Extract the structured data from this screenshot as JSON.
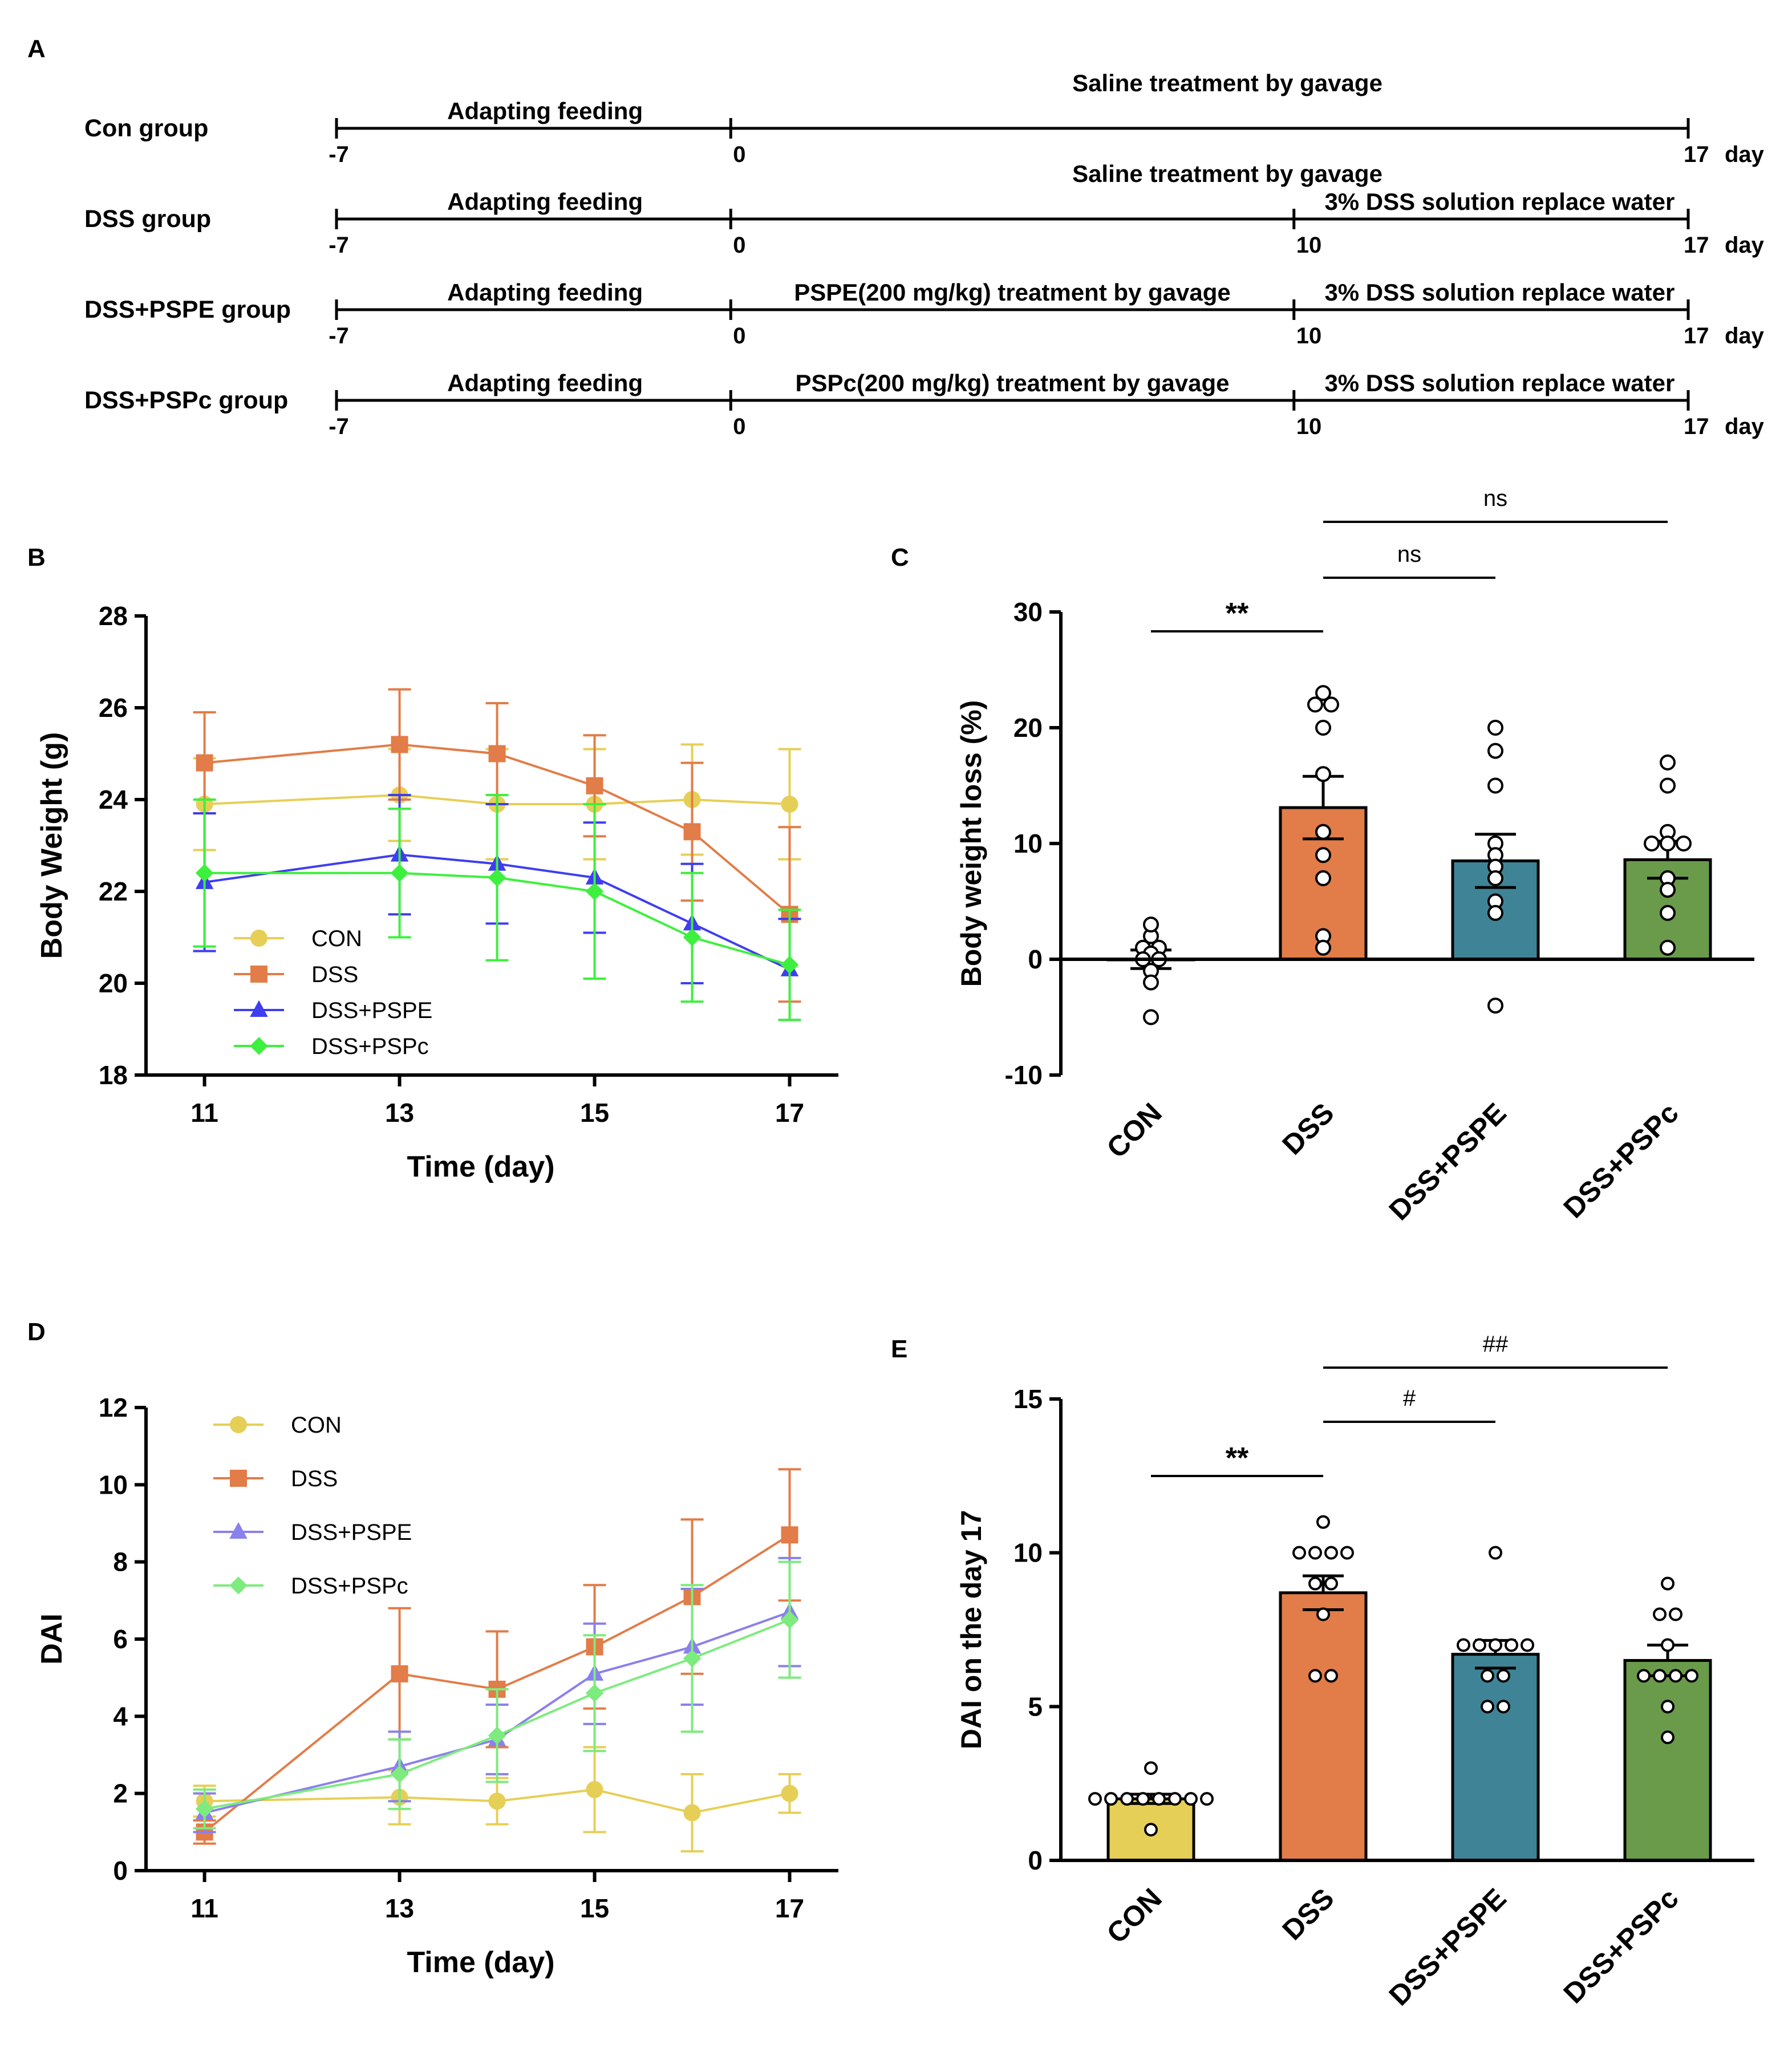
{
  "panels": {
    "A": {
      "letter": "A",
      "day_unit": "day",
      "rows": [
        {
          "group": "Con group",
          "ticks": [
            "-7",
            "0",
            "17"
          ],
          "segments": [
            "Adapting feeding",
            "Saline treatment by gavage"
          ]
        },
        {
          "group": "DSS group",
          "ticks": [
            "-7",
            "0",
            "10",
            "17"
          ],
          "segments": [
            "Adapting feeding",
            "Saline treatment by gavage",
            "3% DSS solution replace water"
          ]
        },
        {
          "group": "DSS+PSPE group",
          "ticks": [
            "-7",
            "0",
            "10",
            "17"
          ],
          "segments": [
            "Adapting feeding",
            "PSPE(200 mg/kg) treatment by gavage",
            "3% DSS solution replace water"
          ]
        },
        {
          "group": "DSS+PSPc group",
          "ticks": [
            "-7",
            "0",
            "10",
            "17"
          ],
          "segments": [
            "Adapting feeding",
            "PSPc(200 mg/kg) treatment by gavage",
            "3% DSS solution replace water"
          ]
        }
      ]
    },
    "B": {
      "letter": "B"
    },
    "C": {
      "letter": "C"
    },
    "D": {
      "letter": "D"
    },
    "E": {
      "letter": "E"
    }
  },
  "colors": {
    "CON": "#E6CF57",
    "DSS": "#E27C48",
    "DSS+PSPE": "#3E3EF0",
    "DSS+PSPc": "#3DF03D",
    "DSS+PSPE_D": "#8A80EE",
    "DSS+PSPc_D": "#7DEB7D",
    "bar_CON": "#E6CF57",
    "bar_DSS": "#E27C48",
    "bar_DSS+PSPE": "#3F8496",
    "bar_DSS+PSPc": "#6A9B4A"
  },
  "chart_data": [
    {
      "id": "B",
      "type": "line",
      "title": "",
      "xlabel": "Time (day)",
      "ylabel": "Body Weight (g)",
      "x": [
        11,
        13,
        14,
        15,
        16,
        17
      ],
      "xticks": [
        "11",
        "13",
        "15",
        "17"
      ],
      "xlim": [
        10.4,
        17.5
      ],
      "ylim": [
        18,
        28
      ],
      "yticks": [
        "18",
        "20",
        "22",
        "24",
        "26",
        "28"
      ],
      "legend_position": "bottom-left",
      "series": [
        {
          "name": "CON",
          "marker": "circle",
          "values": [
            23.9,
            24.1,
            23.9,
            23.9,
            24.0,
            23.9
          ],
          "error": [
            1.0,
            1.0,
            1.2,
            1.2,
            1.2,
            1.2
          ]
        },
        {
          "name": "DSS",
          "marker": "square",
          "values": [
            24.8,
            25.2,
            25.0,
            24.3,
            23.3,
            21.5
          ],
          "error": [
            1.1,
            1.2,
            1.1,
            1.1,
            1.5,
            1.9
          ]
        },
        {
          "name": "DSS+PSPE",
          "marker": "triangle",
          "values": [
            22.2,
            22.8,
            22.6,
            22.3,
            21.3,
            20.3
          ],
          "error": [
            1.5,
            1.3,
            1.3,
            1.2,
            1.3,
            1.1
          ]
        },
        {
          "name": "DSS+PSPc",
          "marker": "diamond",
          "values": [
            22.4,
            22.4,
            22.3,
            22.0,
            21.0,
            20.4
          ],
          "error": [
            1.6,
            1.4,
            1.8,
            1.9,
            1.4,
            1.2
          ]
        }
      ]
    },
    {
      "id": "C",
      "type": "bar",
      "title": "",
      "xlabel": "",
      "ylabel": "Body weight loss (%)",
      "categories": [
        "CON",
        "DSS",
        "DSS+PSPE",
        "DSS+PSPc"
      ],
      "values": [
        0.0,
        13.1,
        8.5,
        8.6
      ],
      "error": [
        0.8,
        2.7,
        2.3,
        1.6
      ],
      "points": [
        [
          2,
          3,
          1,
          1,
          0.5,
          0,
          0,
          -1,
          -2,
          -5
        ],
        [
          23,
          22,
          22,
          20,
          16,
          11,
          9,
          7,
          2,
          1
        ],
        [
          20,
          18,
          15,
          10,
          9,
          8,
          7,
          5,
          4,
          -4
        ],
        [
          17,
          15,
          11,
          10,
          10,
          10,
          7,
          6,
          4,
          1
        ]
      ],
      "ylim": [
        -10,
        30
      ],
      "yticks": [
        "-10",
        "0",
        "10",
        "20",
        "30"
      ],
      "significance": [
        {
          "from": "CON",
          "to": "DSS",
          "label": "**"
        },
        {
          "from": "DSS",
          "to": "DSS+PSPE",
          "label": "ns"
        },
        {
          "from": "DSS",
          "to": "DSS+PSPc",
          "label": "ns"
        }
      ]
    },
    {
      "id": "D",
      "type": "line",
      "title": "",
      "xlabel": "Time (day)",
      "ylabel": "DAI",
      "x": [
        11,
        13,
        14,
        15,
        16,
        17
      ],
      "xticks": [
        "11",
        "13",
        "15",
        "17"
      ],
      "xlim": [
        10.4,
        17.5
      ],
      "ylim": [
        0,
        12
      ],
      "yticks": [
        "0",
        "2",
        "4",
        "6",
        "8",
        "10",
        "12"
      ],
      "legend_position": "top-left",
      "series": [
        {
          "name": "CON",
          "marker": "circle",
          "values": [
            1.8,
            1.9,
            1.8,
            2.1,
            1.5,
            2.0
          ],
          "error": [
            0.4,
            0.7,
            0.6,
            1.1,
            1.0,
            0.5
          ]
        },
        {
          "name": "DSS",
          "marker": "square",
          "values": [
            1.0,
            5.1,
            4.7,
            5.8,
            7.1,
            8.7
          ],
          "error": [
            0.3,
            1.7,
            1.5,
            1.6,
            2.0,
            1.7
          ]
        },
        {
          "name": "DSS+PSPE",
          "marker": "triangle",
          "values": [
            1.5,
            2.7,
            3.4,
            5.1,
            5.8,
            6.7
          ],
          "error": [
            0.5,
            0.9,
            0.9,
            1.3,
            1.5,
            1.4
          ]
        },
        {
          "name": "DSS+PSPc",
          "marker": "diamond",
          "values": [
            1.6,
            2.5,
            3.5,
            4.6,
            5.5,
            6.5
          ],
          "error": [
            0.5,
            0.9,
            1.2,
            1.5,
            1.9,
            1.5
          ]
        }
      ]
    },
    {
      "id": "E",
      "type": "bar",
      "title": "",
      "xlabel": "",
      "ylabel": "DAI on the day 17",
      "categories": [
        "CON",
        "DSS",
        "DSS+PSPE",
        "DSS+PSPc"
      ],
      "values": [
        2.0,
        8.7,
        6.7,
        6.5
      ],
      "error": [
        0.15,
        0.55,
        0.45,
        0.5
      ],
      "points": [
        [
          3,
          2,
          2,
          2,
          2,
          2,
          2,
          2,
          2,
          1
        ],
        [
          11,
          10,
          10,
          10,
          10,
          9,
          9,
          8,
          6,
          6
        ],
        [
          10,
          7,
          7,
          7,
          7,
          7,
          6,
          6,
          5,
          5
        ],
        [
          9,
          8,
          8,
          7,
          6,
          6,
          6,
          6,
          5,
          4
        ]
      ],
      "ylim": [
        0,
        15
      ],
      "yticks": [
        "0",
        "5",
        "10",
        "15"
      ],
      "significance": [
        {
          "from": "CON",
          "to": "DSS",
          "label": "**"
        },
        {
          "from": "DSS",
          "to": "DSS+PSPE",
          "label": "#"
        },
        {
          "from": "DSS",
          "to": "DSS+PSPc",
          "label": "##"
        }
      ]
    }
  ]
}
